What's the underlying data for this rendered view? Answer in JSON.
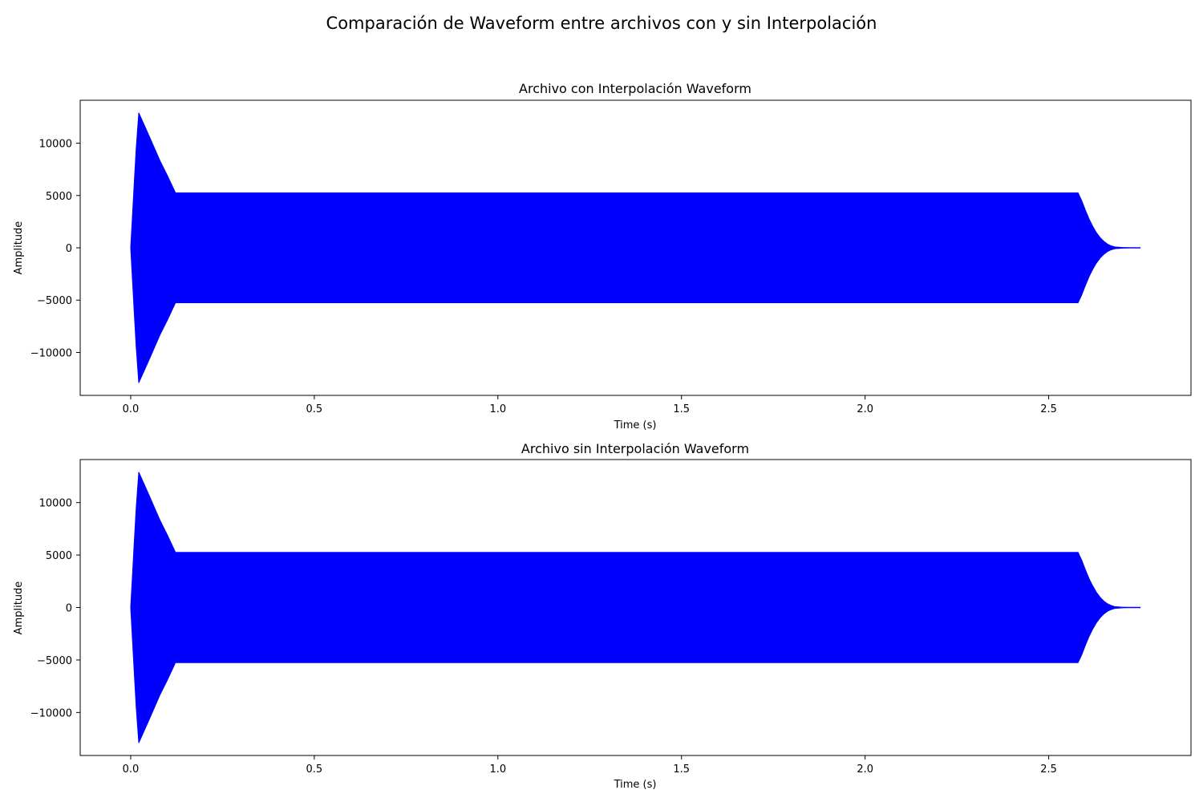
{
  "figure": {
    "suptitle": "Comparación de Waveform entre archivos con y sin Interpolación"
  },
  "chart_data": [
    {
      "type": "line",
      "title": "Archivo con Interpolación Waveform",
      "xlabel": "Time (s)",
      "ylabel": "Amplitude",
      "xlim": [
        -0.1375,
        2.8875
      ],
      "ylim": [
        -14100,
        14100
      ],
      "xticks": [
        0.0,
        0.5,
        1.0,
        1.5,
        2.0,
        2.5
      ],
      "xtick_labels": [
        "0.0",
        "0.5",
        "1.0",
        "1.5",
        "2.0",
        "2.5"
      ],
      "yticks": [
        -10000,
        -5000,
        0,
        5000,
        10000
      ],
      "ytick_labels": [
        "−10000",
        "−5000",
        "0",
        "5000",
        "10000"
      ],
      "grid": false,
      "color": "#0000ff",
      "envelope": {
        "x": [
          0.0,
          0.005,
          0.01,
          0.015,
          0.022,
          0.05,
          0.08,
          0.1,
          0.122,
          0.5,
          1.0,
          1.5,
          2.0,
          2.5,
          2.58,
          2.59,
          2.6,
          2.61,
          2.62,
          2.63,
          2.64,
          2.65,
          2.66,
          2.67,
          2.68,
          2.7,
          2.72,
          2.75
        ],
        "y": [
          0,
          3200,
          6400,
          9500,
          12900,
          10700,
          8300,
          6900,
          5250,
          5250,
          5250,
          5250,
          5250,
          5250,
          5250,
          4500,
          3600,
          2750,
          2050,
          1450,
          980,
          620,
          360,
          190,
          90,
          25,
          0,
          0
        ]
      }
    },
    {
      "type": "line",
      "title": "Archivo sin Interpolación Waveform",
      "xlabel": "Time (s)",
      "ylabel": "Amplitude",
      "xlim": [
        -0.1375,
        2.8875
      ],
      "ylim": [
        -14100,
        14100
      ],
      "xticks": [
        0.0,
        0.5,
        1.0,
        1.5,
        2.0,
        2.5
      ],
      "xtick_labels": [
        "0.0",
        "0.5",
        "1.0",
        "1.5",
        "2.0",
        "2.5"
      ],
      "yticks": [
        -10000,
        -5000,
        0,
        5000,
        10000
      ],
      "ytick_labels": [
        "−10000",
        "−5000",
        "0",
        "5000",
        "10000"
      ],
      "grid": false,
      "color": "#0000ff",
      "envelope": {
        "x": [
          0.0,
          0.005,
          0.01,
          0.015,
          0.022,
          0.05,
          0.08,
          0.1,
          0.122,
          0.5,
          1.0,
          1.5,
          2.0,
          2.5,
          2.58,
          2.59,
          2.6,
          2.61,
          2.62,
          2.63,
          2.64,
          2.65,
          2.66,
          2.67,
          2.68,
          2.7,
          2.72,
          2.75
        ],
        "y": [
          0,
          3200,
          6400,
          9500,
          12900,
          10700,
          8300,
          6900,
          5250,
          5250,
          5250,
          5250,
          5250,
          5250,
          5250,
          4500,
          3600,
          2750,
          2050,
          1450,
          980,
          620,
          360,
          190,
          90,
          25,
          0,
          0
        ]
      }
    }
  ]
}
